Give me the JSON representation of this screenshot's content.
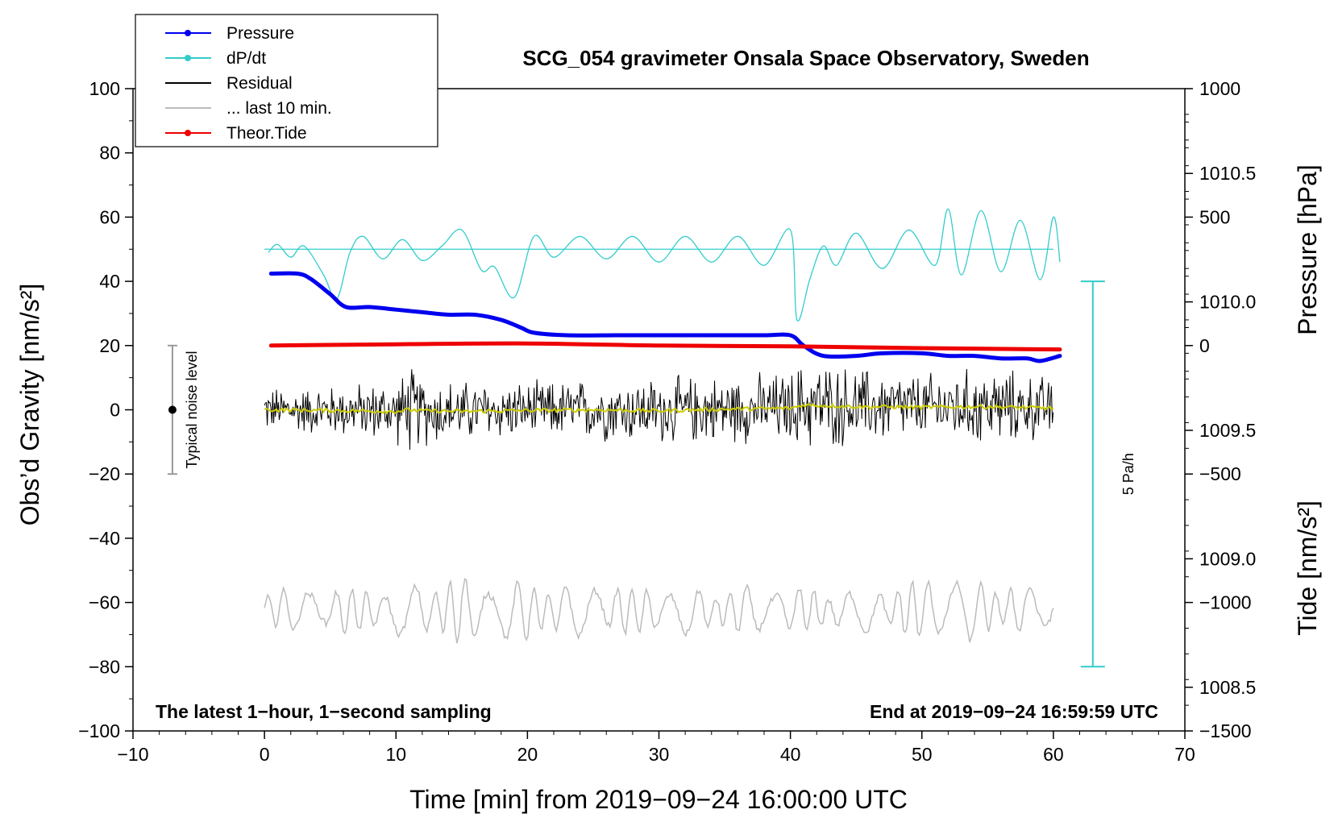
{
  "chart_data": {
    "type": "line",
    "title": "SCG_054 gravimeter Onsala Space Observatory, Sweden",
    "xlabel": "Time [min] from 2019−09−24 16:00:00 UTC",
    "ylabel_left": "Obs’d Gravity [nm/s²]",
    "ylabel_right_top": "Pressure [hPa]",
    "ylabel_right_bottom": "Tide [nm/s²]",
    "xlim": [
      -10,
      70
    ],
    "ylim_left": [
      -100,
      100
    ],
    "xticks": [
      -10,
      0,
      10,
      20,
      30,
      40,
      50,
      60,
      70
    ],
    "xtick_labels": [
      "−10",
      "0",
      "10",
      "20",
      "30",
      "40",
      "50",
      "60",
      "70"
    ],
    "yticks_left": [
      100,
      80,
      60,
      40,
      20,
      0,
      -20,
      -40,
      -60,
      -80,
      -100
    ],
    "ytick_labels_left": [
      "100",
      "80",
      "60",
      "40",
      "20",
      "0",
      "−20",
      "−40",
      "−60",
      "−80",
      "−100"
    ],
    "pressure_axis": {
      "ticks": [
        1010.5,
        1010.0,
        1009.5,
        1009.0,
        1008.5
      ],
      "labels": [
        "1010.5",
        "1010.0",
        "1009.5",
        "1009.0",
        "1008.5"
      ],
      "range": [
        1008.33,
        1010.83
      ]
    },
    "tide_axis": {
      "ticks": [
        1000,
        500,
        0,
        -500,
        -1000,
        -1500
      ],
      "labels": [
        "1000",
        "500",
        "0",
        "−500",
        "−1000",
        "−1500"
      ],
      "range": [
        -1500,
        1000
      ]
    },
    "legend": [
      {
        "label": "Pressure",
        "color": "#0000ee",
        "marker": "dot"
      },
      {
        "label": "dP/dt",
        "color": "#33cccc",
        "marker": "dot"
      },
      {
        "label": "Residual",
        "color": "#000000",
        "marker": "none"
      },
      {
        "label": "... last 10 min.",
        "color": "#bbbbbb",
        "marker": "none"
      },
      {
        "label": "Theor.Tide",
        "color": "#ee0000",
        "marker": "dot"
      }
    ],
    "annotations": {
      "left_bottom": "The latest 1−hour, 1−second sampling",
      "right_bottom": "End at 2019−09−24 16:59:59 UTC",
      "noise_label": "Typical noise level",
      "scale_label": "5 Pa/h"
    },
    "noise_bar": {
      "x": -7,
      "center": 0,
      "low": -20,
      "high": 20
    },
    "scale_bar": {
      "x": 63,
      "top_pressure": 1010.08,
      "bottom_pressure": 1008.58
    },
    "series": [
      {
        "name": "Pressure",
        "axis": "pressure",
        "color": "#0000ee",
        "x": [
          0.5,
          2.5,
          3.5,
          5,
          6.2,
          8,
          10,
          12,
          14,
          16,
          18,
          19.5,
          20.5,
          23,
          27,
          31,
          35,
          38,
          40,
          41,
          42.5,
          45,
          47,
          50,
          52,
          54,
          56,
          58,
          59,
          60.5
        ],
        "values": [
          1010.11,
          1010.11,
          1010.09,
          1010.03,
          1009.98,
          1009.98,
          1009.97,
          1009.96,
          1009.95,
          1009.95,
          1009.93,
          1009.9,
          1009.88,
          1009.87,
          1009.87,
          1009.87,
          1009.87,
          1009.87,
          1009.87,
          1009.83,
          1009.79,
          1009.79,
          1009.8,
          1009.8,
          1009.79,
          1009.79,
          1009.78,
          1009.78,
          1009.77,
          1009.79
        ]
      },
      {
        "name": "dP/dt",
        "axis": "left",
        "color": "#33cccc",
        "baseline": 50,
        "x": [
          0.3,
          1,
          2,
          3,
          4.5,
          5.5,
          6.5,
          7.5,
          9,
          10.5,
          12,
          13.5,
          15,
          16.5,
          17.5,
          19,
          20.5,
          22,
          24,
          26,
          28,
          30,
          32,
          34,
          36,
          38,
          40,
          40.5,
          41.5,
          42.5,
          43.5,
          45,
          47,
          49,
          51,
          52,
          53,
          54.5,
          56,
          57.5,
          59,
          60,
          60.5
        ],
        "values": [
          49.0,
          51.5,
          47.5,
          51.0,
          42.0,
          34.5,
          49.0,
          54.0,
          47.0,
          53.0,
          46.5,
          51.0,
          56.0,
          43.5,
          44.5,
          35.0,
          54.0,
          47.5,
          54.0,
          47.0,
          54.0,
          46.0,
          54.0,
          46.0,
          54.0,
          45.0,
          56.0,
          28.0,
          41.0,
          51.0,
          45.0,
          55.0,
          44.0,
          56.0,
          45.0,
          62.5,
          42.0,
          62.0,
          43.0,
          59.0,
          40.5,
          60.0,
          46.0
        ]
      },
      {
        "name": "Residual",
        "axis": "left",
        "color": "#000000",
        "style": "noise",
        "x": [
          0,
          5,
          10,
          11,
          12,
          15,
          20,
          25,
          30,
          35,
          40,
          41,
          45,
          50,
          55,
          60
        ],
        "values": [
          0,
          -0.2,
          -0.5,
          0,
          -0.3,
          -0.5,
          -0.2,
          0,
          -0.3,
          0.2,
          0.5,
          1.5,
          1.0,
          0.8,
          1.0,
          0.5
        ],
        "amplitude": [
          8,
          9,
          11,
          16,
          13,
          11,
          10,
          11,
          12,
          12,
          13,
          16,
          14,
          12,
          14,
          11
        ]
      },
      {
        "name": "... last 10 min.",
        "axis": "left",
        "color": "#bbbbbb",
        "style": "oscillation",
        "x": [
          0,
          10,
          14,
          19,
          25,
          30,
          40,
          45,
          50,
          52,
          55,
          60
        ],
        "values": [
          -62,
          -63,
          -62,
          -63,
          -62,
          -63,
          -62,
          -63,
          -62,
          -63,
          -62,
          -62
        ],
        "amplitude": [
          6,
          7,
          10,
          9,
          8,
          7,
          7,
          6,
          9,
          11,
          8,
          6
        ]
      },
      {
        "name": "Theor.Tide",
        "axis": "tide",
        "color": "#ee0000",
        "x": [
          0.5,
          10,
          20,
          30,
          40,
          50,
          60.5
        ],
        "values": [
          0,
          5,
          8,
          0,
          -3,
          -10,
          -15
        ]
      }
    ]
  }
}
